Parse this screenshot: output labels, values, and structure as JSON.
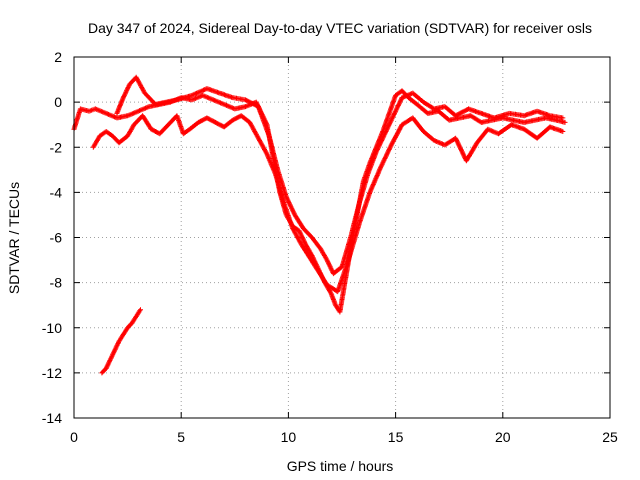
{
  "chart_data": {
    "type": "scatter",
    "title": "Day 347 of 2024, Sidereal Day-to-day VTEC variation (SDTVAR) for receiver osls",
    "xlabel": "GPS time / hours",
    "ylabel": "SDTVAR / TECUs",
    "xlim": [
      0,
      25
    ],
    "ylim": [
      -14,
      2
    ],
    "xticks": [
      0,
      5,
      10,
      15,
      20,
      25
    ],
    "yticks": [
      -14,
      -12,
      -10,
      -8,
      -6,
      -4,
      -2,
      0,
      2
    ],
    "grid": true,
    "legend": "none",
    "marker": "+",
    "color": "#ff0000",
    "series": [
      {
        "name": "main_trace",
        "x": [
          0.0,
          0.3,
          0.7,
          1.0,
          1.5,
          2.0,
          2.5,
          3.0,
          3.5,
          4.0,
          4.5,
          5.0,
          5.5,
          6.0,
          6.5,
          7.0,
          7.5,
          8.0,
          8.5,
          9.0,
          9.3,
          9.6,
          9.9,
          10.2,
          10.5,
          10.8,
          11.1,
          11.4,
          11.7,
          12.0,
          12.2,
          12.4,
          12.6,
          12.9,
          13.2,
          13.5,
          13.8,
          14.1,
          14.4,
          14.7,
          15.0,
          15.3,
          15.6,
          16.0,
          16.5,
          17.0,
          17.5,
          18.0,
          18.5,
          19.0,
          19.5,
          20.0,
          20.5,
          21.0,
          21.5,
          22.0,
          22.5,
          22.9
        ],
        "y": [
          -1.2,
          -0.3,
          -0.4,
          -0.3,
          -0.5,
          -0.7,
          -0.6,
          -0.4,
          -0.2,
          -0.1,
          0.0,
          0.2,
          0.1,
          0.3,
          0.1,
          -0.1,
          -0.3,
          -0.2,
          0.0,
          -1.0,
          -2.5,
          -4.0,
          -5.0,
          -5.5,
          -5.7,
          -6.3,
          -6.8,
          -7.4,
          -8.0,
          -8.5,
          -9.0,
          -9.3,
          -8.2,
          -6.5,
          -5.0,
          -3.5,
          -2.7,
          -2.0,
          -1.3,
          -0.5,
          0.3,
          0.5,
          0.2,
          -0.1,
          -0.5,
          -0.4,
          -0.8,
          -0.7,
          -0.6,
          -0.9,
          -0.8,
          -0.7,
          -0.8,
          -0.9,
          -0.8,
          -0.7,
          -0.8,
          -0.9
        ]
      },
      {
        "name": "upper_band",
        "x": [
          2.0,
          2.3,
          2.6,
          2.9,
          3.3,
          3.8,
          4.3,
          4.8,
          5.5,
          6.2,
          6.8,
          7.4,
          8.0,
          8.6,
          9.1,
          9.5,
          9.9,
          10.3,
          10.7,
          11.1,
          11.5,
          11.8,
          12.1,
          12.5,
          12.9,
          13.3,
          13.7,
          14.1,
          14.5,
          14.9,
          15.3,
          15.8,
          16.3,
          16.8,
          17.3,
          17.8,
          18.4,
          19.0,
          19.6,
          20.3,
          21.0,
          21.6,
          22.2,
          22.8
        ],
        "y": [
          -0.5,
          0.2,
          0.8,
          1.1,
          0.4,
          -0.1,
          0.0,
          0.1,
          0.3,
          0.6,
          0.4,
          0.2,
          0.1,
          -0.2,
          -1.5,
          -3.0,
          -4.2,
          -5.0,
          -5.6,
          -6.0,
          -6.5,
          -7.0,
          -7.6,
          -7.3,
          -6.0,
          -4.5,
          -3.2,
          -2.2,
          -1.4,
          -0.6,
          0.2,
          0.4,
          0.0,
          -0.3,
          -0.2,
          -0.6,
          -0.3,
          -0.5,
          -0.7,
          -0.5,
          -0.6,
          -0.4,
          -0.6,
          -0.7
        ]
      },
      {
        "name": "lower_loops",
        "x": [
          0.9,
          1.2,
          1.5,
          1.8,
          2.1,
          2.5,
          2.8,
          3.2,
          3.6,
          4.0,
          4.4,
          4.8,
          5.1,
          5.4,
          5.8,
          6.2,
          6.6,
          7.0,
          7.4,
          7.8,
          8.2,
          8.6,
          9.0,
          9.4,
          9.8,
          10.2,
          10.6,
          11.0,
          11.4,
          11.8,
          12.3,
          12.8,
          13.3,
          13.8,
          14.3,
          14.8,
          15.3,
          15.8,
          16.3,
          16.8,
          17.3,
          17.8,
          18.3,
          18.8,
          19.3,
          19.8,
          20.4,
          21.0,
          21.6,
          22.2,
          22.8
        ],
        "y": [
          -2.0,
          -1.5,
          -1.3,
          -1.5,
          -1.8,
          -1.5,
          -1.0,
          -0.6,
          -1.2,
          -1.4,
          -1.0,
          -0.6,
          -1.4,
          -1.2,
          -0.9,
          -0.7,
          -0.9,
          -1.1,
          -0.8,
          -0.6,
          -0.9,
          -1.6,
          -2.3,
          -3.2,
          -4.5,
          -5.6,
          -6.3,
          -6.9,
          -7.5,
          -8.1,
          -8.4,
          -7.0,
          -5.4,
          -4.0,
          -2.9,
          -1.9,
          -1.0,
          -0.7,
          -1.3,
          -1.7,
          -1.9,
          -1.6,
          -2.6,
          -1.8,
          -1.2,
          -1.4,
          -1.0,
          -1.2,
          -1.6,
          -1.1,
          -1.3
        ]
      },
      {
        "name": "isolated_segment",
        "x": [
          1.3,
          1.5,
          1.7,
          1.9,
          2.1,
          2.3,
          2.5,
          2.7,
          2.9,
          3.1
        ],
        "y": [
          -12.0,
          -11.8,
          -11.4,
          -11.0,
          -10.6,
          -10.3,
          -10.0,
          -9.8,
          -9.5,
          -9.2
        ]
      }
    ]
  }
}
